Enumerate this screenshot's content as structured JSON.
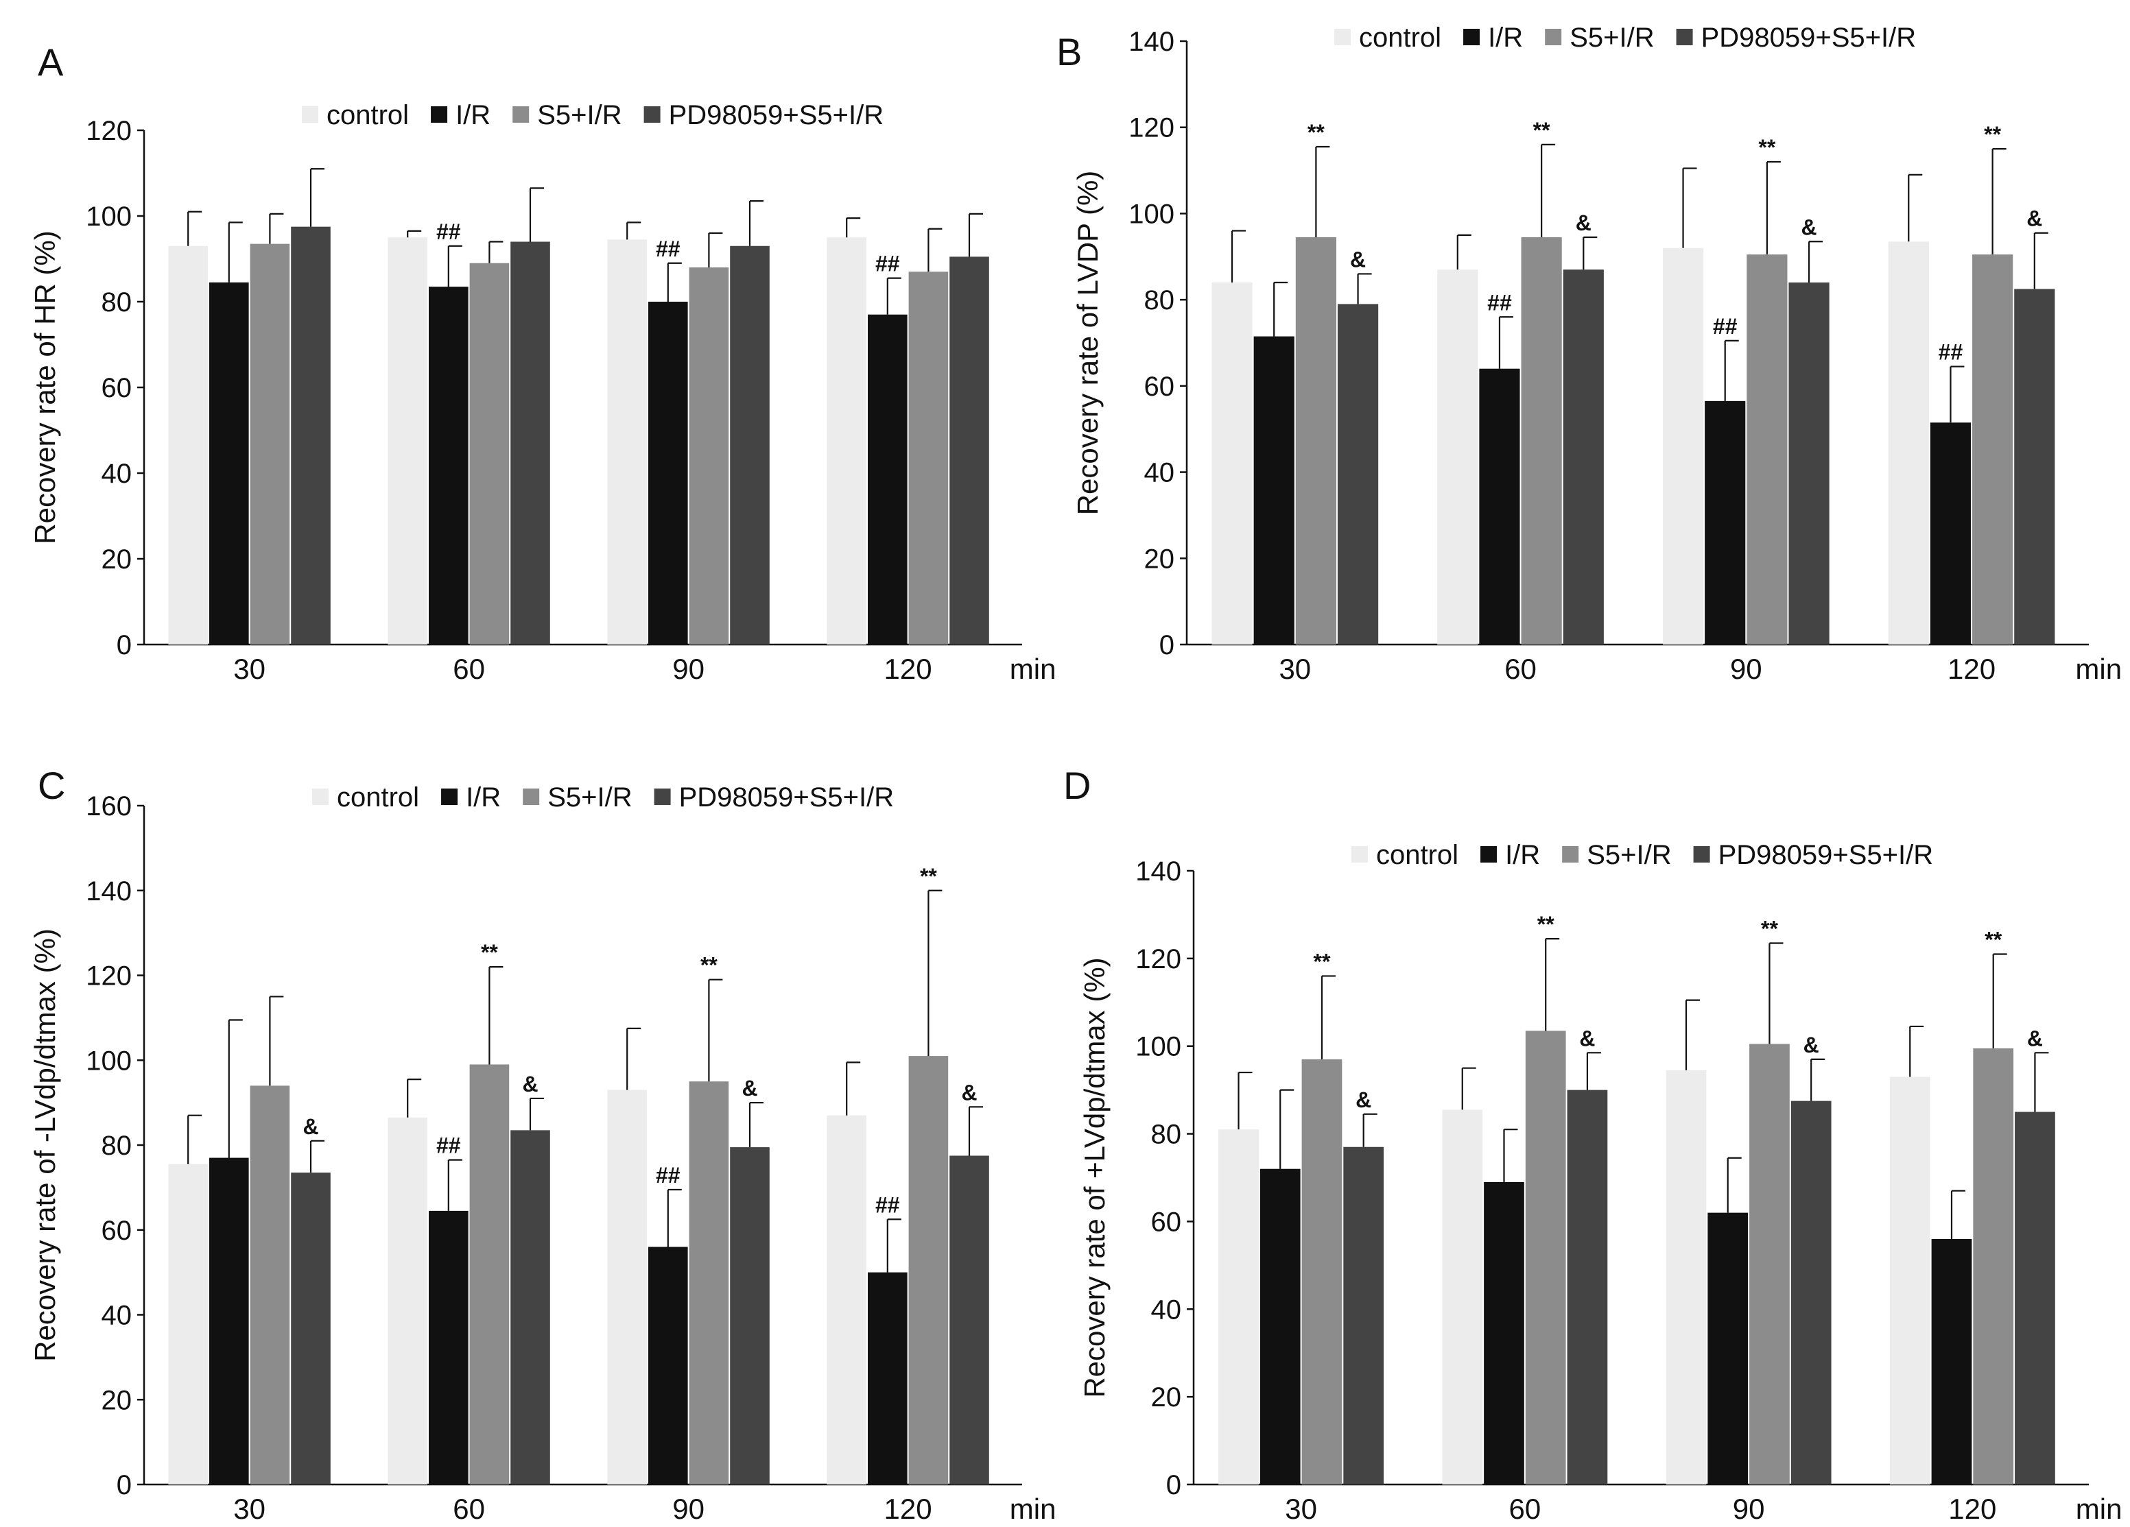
{
  "series": [
    {
      "name": "control",
      "color": "#ececec"
    },
    {
      "name": "I/R",
      "color": "#111111"
    },
    {
      "name": "S5+I/R",
      "color": "#8c8c8c"
    },
    {
      "name": "PD98059+S5+I/R",
      "color": "#444444"
    }
  ],
  "chart_data": [
    {
      "panel": "A",
      "type": "bar",
      "ylabel": "Recovery rate of HR (%)",
      "xlabel": "min",
      "categories": [
        "30",
        "60",
        "90",
        "120"
      ],
      "ylim": [
        0,
        120
      ],
      "yticks": [
        0,
        20,
        40,
        60,
        80,
        100,
        120
      ],
      "series": [
        {
          "name": "control",
          "values": [
            93,
            95,
            94.5,
            95
          ],
          "errors": [
            8,
            1.5,
            4,
            4.5
          ]
        },
        {
          "name": "I/R",
          "values": [
            84.5,
            83.5,
            80,
            77
          ],
          "errors": [
            14,
            9.5,
            9,
            8.5
          ]
        },
        {
          "name": "S5+I/R",
          "values": [
            93.5,
            89,
            88,
            87
          ],
          "errors": [
            7,
            5,
            8,
            10
          ]
        },
        {
          "name": "PD98059+S5+I/R",
          "values": [
            97.5,
            94,
            93,
            90.5
          ],
          "errors": [
            13.5,
            12.5,
            10.5,
            10
          ]
        }
      ],
      "annotations": [
        {
          "category": 1,
          "series": 1,
          "text": "##"
        },
        {
          "category": 2,
          "series": 1,
          "text": "##"
        },
        {
          "category": 3,
          "series": 1,
          "text": "##"
        }
      ]
    },
    {
      "panel": "B",
      "type": "bar",
      "ylabel": "Recovery rate of LVDP (%)",
      "xlabel": "min",
      "categories": [
        "30",
        "60",
        "90",
        "120"
      ],
      "ylim": [
        0,
        140
      ],
      "yticks": [
        0,
        20,
        40,
        60,
        80,
        100,
        120,
        140
      ],
      "series": [
        {
          "name": "control",
          "values": [
            84,
            87,
            92,
            93.5
          ],
          "errors": [
            12,
            8,
            18.5,
            15.5
          ]
        },
        {
          "name": "I/R",
          "values": [
            71.5,
            64,
            56.5,
            51.5
          ],
          "errors": [
            12.5,
            12,
            14,
            13
          ]
        },
        {
          "name": "S5+I/R",
          "values": [
            94.5,
            94.5,
            90.5,
            90.5
          ],
          "errors": [
            21,
            21.5,
            21.5,
            24.5
          ]
        },
        {
          "name": "PD98059+S5+I/R",
          "values": [
            79,
            87,
            84,
            82.5
          ],
          "errors": [
            7,
            7.5,
            9.5,
            13
          ]
        }
      ],
      "annotations": [
        {
          "category": 0,
          "series": 2,
          "text": "**"
        },
        {
          "category": 1,
          "series": 2,
          "text": "**"
        },
        {
          "category": 2,
          "series": 2,
          "text": "**"
        },
        {
          "category": 3,
          "series": 2,
          "text": "**"
        },
        {
          "category": 1,
          "series": 1,
          "text": "##"
        },
        {
          "category": 2,
          "series": 1,
          "text": "##"
        },
        {
          "category": 3,
          "series": 1,
          "text": "##"
        },
        {
          "category": 0,
          "series": 3,
          "text": "&"
        },
        {
          "category": 1,
          "series": 3,
          "text": "&"
        },
        {
          "category": 2,
          "series": 3,
          "text": "&"
        },
        {
          "category": 3,
          "series": 3,
          "text": "&"
        }
      ]
    },
    {
      "panel": "C",
      "type": "bar",
      "ylabel": "Recovery rate of -LVdp/dtmax (%)",
      "xlabel": "min",
      "categories": [
        "30",
        "60",
        "90",
        "120"
      ],
      "ylim": [
        0,
        160
      ],
      "yticks": [
        0,
        20,
        40,
        60,
        80,
        100,
        120,
        140,
        160
      ],
      "series": [
        {
          "name": "control",
          "values": [
            75.5,
            86.5,
            93,
            87
          ],
          "errors": [
            11.5,
            9,
            14.5,
            12.5
          ]
        },
        {
          "name": "I/R",
          "values": [
            77,
            64.5,
            56,
            50
          ],
          "errors": [
            32.5,
            12,
            13.5,
            12.5
          ]
        },
        {
          "name": "S5+I/R",
          "values": [
            94,
            99,
            95,
            101
          ],
          "errors": [
            21,
            23,
            24,
            39
          ]
        },
        {
          "name": "PD98059+S5+I/R",
          "values": [
            73.5,
            83.5,
            79.5,
            77.5
          ],
          "errors": [
            7.5,
            7.5,
            10.5,
            11.5
          ]
        }
      ],
      "annotations": [
        {
          "category": 1,
          "series": 2,
          "text": "**"
        },
        {
          "category": 2,
          "series": 2,
          "text": "**"
        },
        {
          "category": 3,
          "series": 2,
          "text": "**"
        },
        {
          "category": 1,
          "series": 1,
          "text": "##"
        },
        {
          "category": 2,
          "series": 1,
          "text": "##"
        },
        {
          "category": 3,
          "series": 1,
          "text": "##"
        },
        {
          "category": 0,
          "series": 3,
          "text": "&"
        },
        {
          "category": 1,
          "series": 3,
          "text": "&"
        },
        {
          "category": 2,
          "series": 3,
          "text": "&"
        },
        {
          "category": 3,
          "series": 3,
          "text": "&"
        }
      ]
    },
    {
      "panel": "D",
      "type": "bar",
      "ylabel": "Recovery rate of +LVdp/dtmax (%)",
      "xlabel": "min",
      "categories": [
        "30",
        "60",
        "90",
        "120"
      ],
      "ylim": [
        0,
        140
      ],
      "yticks": [
        0,
        20,
        40,
        60,
        80,
        100,
        120,
        140
      ],
      "series": [
        {
          "name": "control",
          "values": [
            81,
            85.5,
            94.5,
            93
          ],
          "errors": [
            13,
            9.5,
            16,
            11.5
          ]
        },
        {
          "name": "I/R",
          "values": [
            72,
            69,
            62,
            56
          ],
          "errors": [
            18,
            12,
            12.5,
            11
          ]
        },
        {
          "name": "S5+I/R",
          "values": [
            97,
            103.5,
            100.5,
            99.5
          ],
          "errors": [
            19,
            21,
            23,
            21.5
          ]
        },
        {
          "name": "PD98059+S5+I/R",
          "values": [
            77,
            90,
            87.5,
            85
          ],
          "errors": [
            7.5,
            8.5,
            9.5,
            13.5
          ]
        }
      ],
      "annotations": [
        {
          "category": 0,
          "series": 2,
          "text": "**"
        },
        {
          "category": 1,
          "series": 2,
          "text": "**"
        },
        {
          "category": 2,
          "series": 2,
          "text": "**"
        },
        {
          "category": 3,
          "series": 2,
          "text": "**"
        },
        {
          "category": 0,
          "series": 3,
          "text": "&"
        },
        {
          "category": 1,
          "series": 3,
          "text": "&"
        },
        {
          "category": 2,
          "series": 3,
          "text": "&"
        },
        {
          "category": 3,
          "series": 3,
          "text": "&"
        }
      ]
    }
  ]
}
